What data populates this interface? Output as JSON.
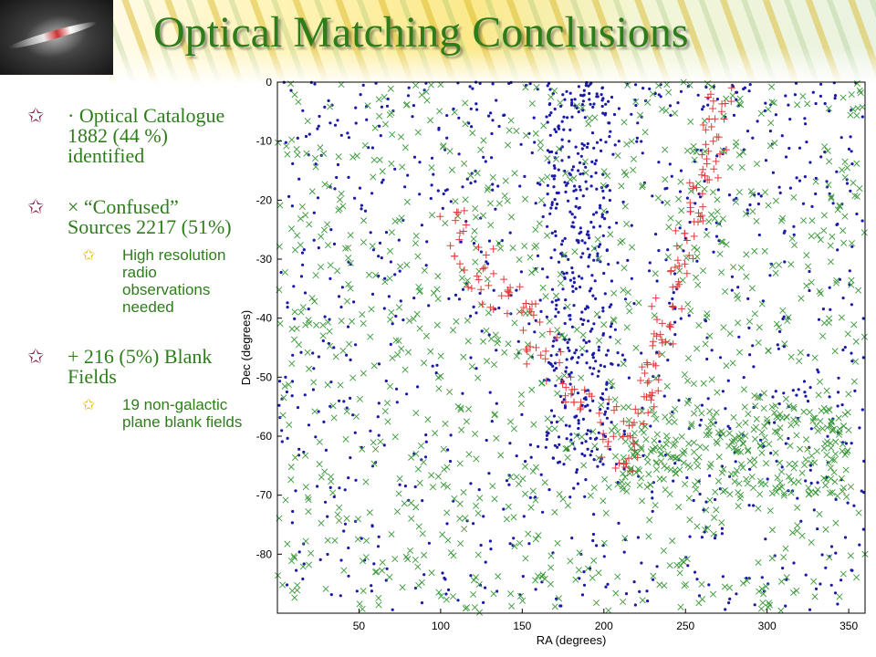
{
  "title": "Optical Matching Conclusions",
  "bullets": [
    {
      "marker": "✩",
      "text": "· Optical Catalogue 1882 (44 %) identified",
      "subs": []
    },
    {
      "marker": "✩",
      "text": "× “Confused” Sources 2217 (51%)",
      "subs": [
        {
          "marker": "✩",
          "text": "High resolution radio observations needed"
        }
      ]
    },
    {
      "marker": "✩",
      "text": "+ 216 (5%) Blank Fields",
      "subs": [
        {
          "marker": "✩",
          "text": "19 non-galactic plane blank fields"
        }
      ]
    }
  ],
  "colors": {
    "title": "#2e7d1b",
    "bullet_star": "#8b2252",
    "sub_star": "#e6b800",
    "identified": "#1a1aa6",
    "confused": "#3c9a3c",
    "blank": "#e03a3a"
  },
  "chart_data": {
    "type": "scatter",
    "xlabel": "RA (degrees)",
    "ylabel": "Dec (degrees)",
    "xlim": [
      0,
      360
    ],
    "ylim": [
      -90,
      0
    ],
    "x_ticks": [
      "50",
      "100",
      "150",
      "200",
      "250",
      "300",
      "350"
    ],
    "y_ticks": [
      "0",
      "-10",
      "-20",
      "-30",
      "-40",
      "-50",
      "-60",
      "-70",
      "-80"
    ],
    "series": [
      {
        "marker": "dot",
        "color": "#1a1aa6",
        "count": 1882
      },
      {
        "marker": "x",
        "color": "#3c9a3c",
        "count": 2217
      },
      {
        "marker": "plus",
        "color": "#e03a3a",
        "count": 216
      }
    ]
  }
}
